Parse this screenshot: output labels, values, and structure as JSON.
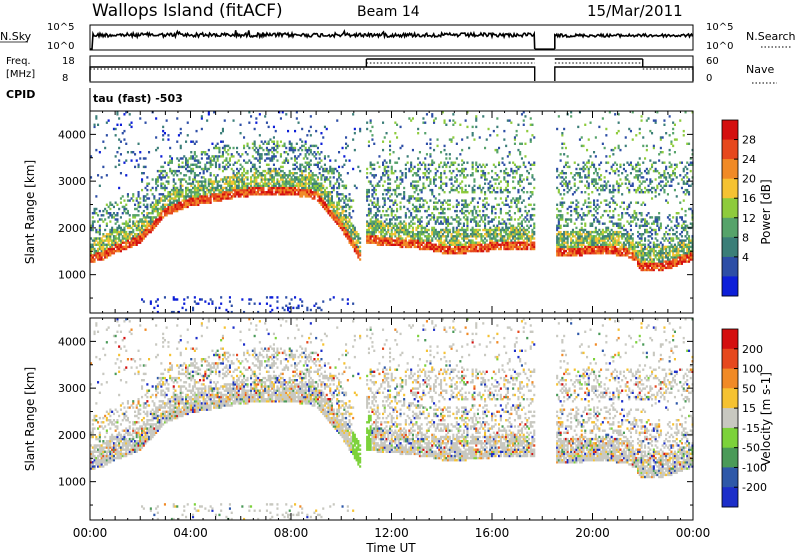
{
  "header": {
    "station": "Wallops Island (fitACF)",
    "beam": "Beam 14",
    "date": "15/Mar/2011",
    "cpid_label": "CPID",
    "cpid_value": "tau (fast) -503"
  },
  "chart_data": [
    {
      "type": "line",
      "name": "nsky-nsearch",
      "left_label": "N.Sky",
      "right_label": "N.Search",
      "left_ticks": [
        "10^5",
        "10^0"
      ],
      "right_ticks": [
        "10^5",
        "10^0"
      ]
    },
    {
      "type": "line",
      "name": "freq-nave",
      "left_label_1": "Freq.",
      "left_label_2": "[MHz]",
      "right_label": "Nave",
      "left_ticks": [
        "18",
        "8"
      ],
      "right_ticks": [
        "60",
        "0"
      ],
      "freq_steps": [
        {
          "from": 0.0,
          "to": 17.7,
          "value": 18
        },
        {
          "from": 18.5,
          "to": 24.0,
          "value": 18
        }
      ],
      "nave_steps": [
        {
          "from": 0.0,
          "to": 11.0,
          "value": 30
        },
        {
          "from": 11.0,
          "to": 17.7,
          "value": 45
        },
        {
          "from": 18.5,
          "to": 22.0,
          "value": 45
        },
        {
          "from": 22.0,
          "to": 24.0,
          "value": 30
        }
      ]
    },
    {
      "type": "heatmap",
      "name": "power",
      "ylabel": "Slant Range [km]",
      "colorbar_label": "Power [dB]",
      "colorbar_ticks": [
        "28",
        "24",
        "20",
        "16",
        "12",
        "8",
        "4"
      ],
      "colors": [
        "#0d1fd8",
        "#2d4ea6",
        "#3b7e78",
        "#56a36a",
        "#8ecb3c",
        "#f5c232",
        "#f08a26",
        "#e6481d",
        "#d40f0f"
      ]
    },
    {
      "type": "heatmap",
      "name": "velocity",
      "ylabel": "Slant Range [km]",
      "xlabel": "Time UT",
      "colorbar_label": "Velocity [m s-1]",
      "colorbar_ticks": [
        "200",
        "100",
        "50",
        "15",
        "-15",
        "-50",
        "-100",
        "-200"
      ],
      "colors": [
        "#1c2ec9",
        "#2e58a8",
        "#4a9a58",
        "#7cd23a",
        "#c8c8c0",
        "#f5c232",
        "#f08a26",
        "#e6481d",
        "#d40f0f"
      ]
    }
  ],
  "axes": {
    "x_ticks": [
      "00:00",
      "04:00",
      "08:00",
      "12:00",
      "16:00",
      "20:00",
      "00:00"
    ],
    "x_tick_hours": [
      0,
      4,
      8,
      12,
      16,
      20,
      24
    ],
    "y_ticks": [
      "4000",
      "3000",
      "2000",
      "1000"
    ],
    "y_tick_values": [
      4000,
      3000,
      2000,
      1000
    ],
    "xlim": [
      0,
      24
    ],
    "ylim": [
      180,
      4500
    ],
    "data_gap_hours": [
      17.7,
      18.5
    ]
  },
  "data_tracks": [
    {
      "t": [
        0.0,
        0.5,
        1.0,
        2.0,
        3.0,
        4.0,
        5.0,
        6.0,
        7.0,
        8.0,
        9.0,
        10.0,
        10.8
      ],
      "r": [
        1300,
        1350,
        1500,
        1700,
        2300,
        2500,
        2600,
        2700,
        2750,
        2750,
        2650,
        2000,
        1300
      ]
    },
    {
      "t": [
        11.0,
        12.0,
        13.0,
        14.0,
        15.0,
        16.0,
        17.0,
        17.7
      ],
      "r": [
        1700,
        1650,
        1600,
        1500,
        1500,
        1550,
        1550,
        1550
      ]
    },
    {
      "t": [
        18.5,
        19.5,
        20.5,
        21.5,
        22.0,
        23.0,
        24.0
      ],
      "r": [
        1450,
        1450,
        1500,
        1400,
        1100,
        1150,
        1350
      ]
    }
  ]
}
